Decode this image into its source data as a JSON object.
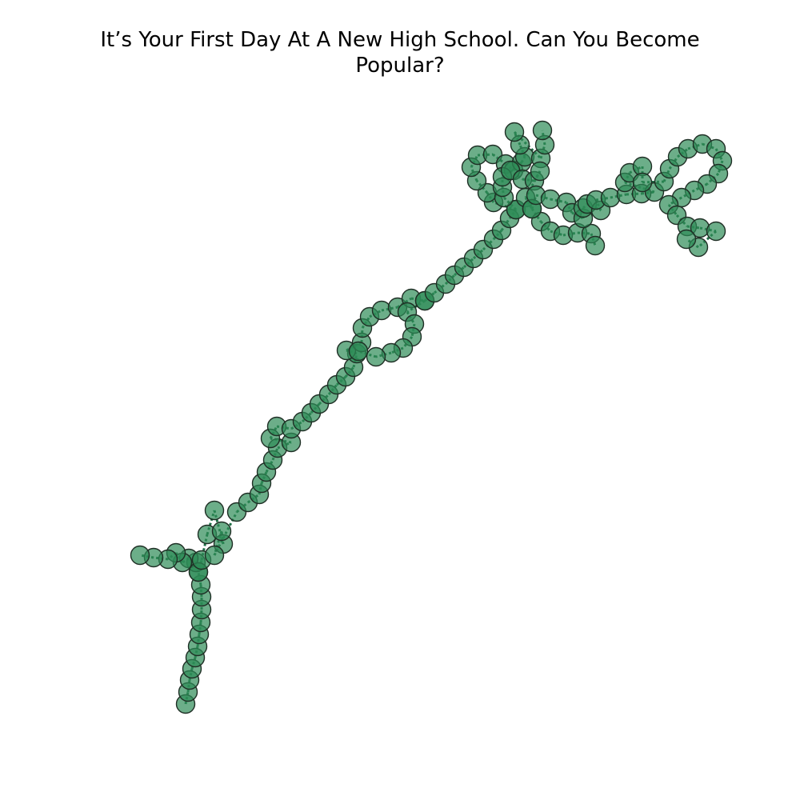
{
  "title": {
    "line1": "It’s Your First Day At A New High School. Can You Become",
    "line2": "Popular?"
  },
  "colors": {
    "node_fill": "#2e8b57",
    "node_stroke": "#1f2f25",
    "edge": "#1e6e45"
  },
  "graph": {
    "node_count": 160,
    "edge_style": "dashed-chain"
  }
}
